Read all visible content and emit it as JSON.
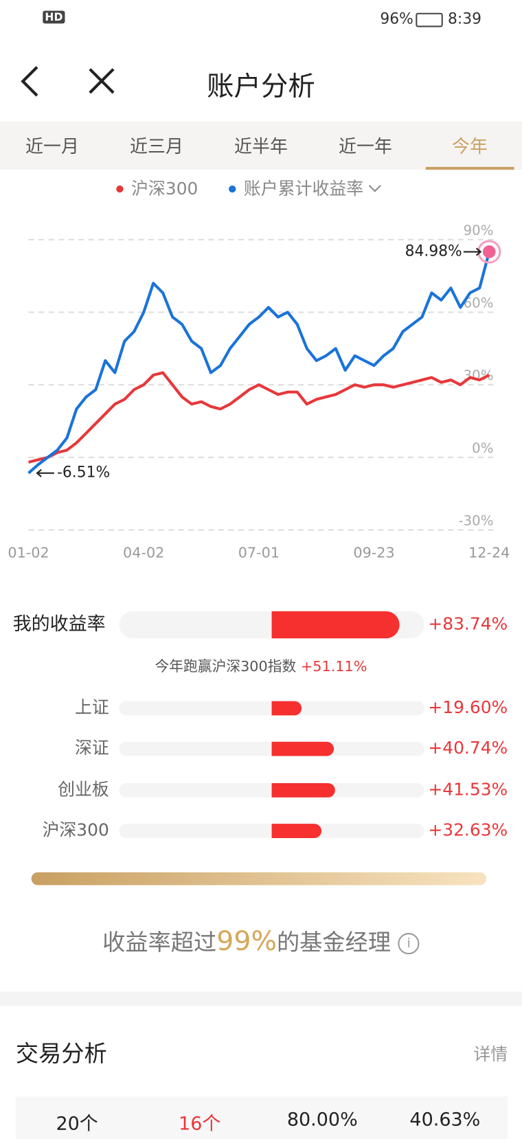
{
  "status_bar": {
    "network": "HD",
    "battery": "96%",
    "time": "8:39"
  },
  "nav": {
    "title": "账户分析"
  },
  "tabs": {
    "items": [
      "近一月",
      "近三月",
      "近半年",
      "近一年",
      "今年"
    ],
    "active": 4
  },
  "chart_data": [
    {
      "type": "line",
      "categories": [
        "01-02",
        null,
        null,
        null,
        null,
        null,
        null,
        null,
        null,
        null,
        null,
        null,
        "04-02",
        null,
        null,
        null,
        null,
        null,
        null,
        null,
        null,
        null,
        null,
        null,
        "07-01",
        null,
        null,
        null,
        null,
        null,
        null,
        null,
        null,
        null,
        null,
        null,
        "09-23",
        null,
        null,
        null,
        null,
        null,
        null,
        null,
        null,
        null,
        null,
        null,
        "12-24"
      ],
      "series": [
        {
          "name": "沪深300",
          "color": "#e8373a",
          "values": [
            -2,
            -1,
            0,
            2,
            3,
            6,
            10,
            14,
            18,
            22,
            24,
            28,
            30,
            34,
            35,
            30,
            25,
            22,
            23,
            21,
            20,
            22,
            25,
            28,
            30,
            28,
            26,
            27,
            27,
            22,
            24,
            25,
            26,
            28,
            30,
            29,
            30,
            30,
            29,
            30,
            31,
            32,
            33,
            31,
            32,
            30,
            33,
            32,
            34
          ]
        },
        {
          "name": "账户累计收益率",
          "color": "#1a73d9",
          "values": [
            -6.51,
            -3,
            0,
            3,
            8,
            20,
            25,
            28,
            40,
            35,
            48,
            52,
            60,
            72,
            68,
            58,
            55,
            48,
            45,
            35,
            38,
            45,
            50,
            55,
            58,
            62,
            58,
            60,
            55,
            45,
            40,
            42,
            45,
            36,
            42,
            40,
            38,
            42,
            45,
            52,
            55,
            58,
            68,
            65,
            70,
            62,
            68,
            70,
            84.98
          ]
        }
      ],
      "annotations": [
        {
          "text": "84.98%",
          "series": 1,
          "index": 48
        },
        {
          "text": "-6.51%",
          "series": 1,
          "index": 0
        }
      ],
      "ylim": [
        -30,
        90
      ],
      "yticks": [
        {
          "value": -30,
          "label": "-30%"
        },
        {
          "value": 0,
          "label": "0%"
        },
        {
          "value": 30,
          "label": "30%"
        },
        {
          "value": 60,
          "label": "60%"
        },
        {
          "value": 90,
          "label": "90%"
        }
      ],
      "grid": true
    },
    {
      "type": "hbar",
      "categories": [
        "我的收益率",
        "上证",
        "深证",
        "创业板",
        "沪深300"
      ],
      "values": [
        83.74,
        19.6,
        40.74,
        41.53,
        32.63
      ],
      "value_labels": [
        "+83.74%",
        "+19.60%",
        "+40.74%",
        "+41.53%",
        "+32.63%"
      ],
      "color": "#f5302e",
      "xlim": [
        -100,
        100
      ]
    }
  ],
  "compare": {
    "text": "今年跑赢沪深300指数",
    "value": "+51.11%"
  },
  "rank": {
    "prefix": "收益率超过",
    "value": "99%",
    "suffix": "的基金经理",
    "icon": "i"
  },
  "trade": {
    "title": "交易分析",
    "link": "详情",
    "stats": [
      "20个",
      "16个",
      "80.00%",
      "40.63%"
    ]
  }
}
